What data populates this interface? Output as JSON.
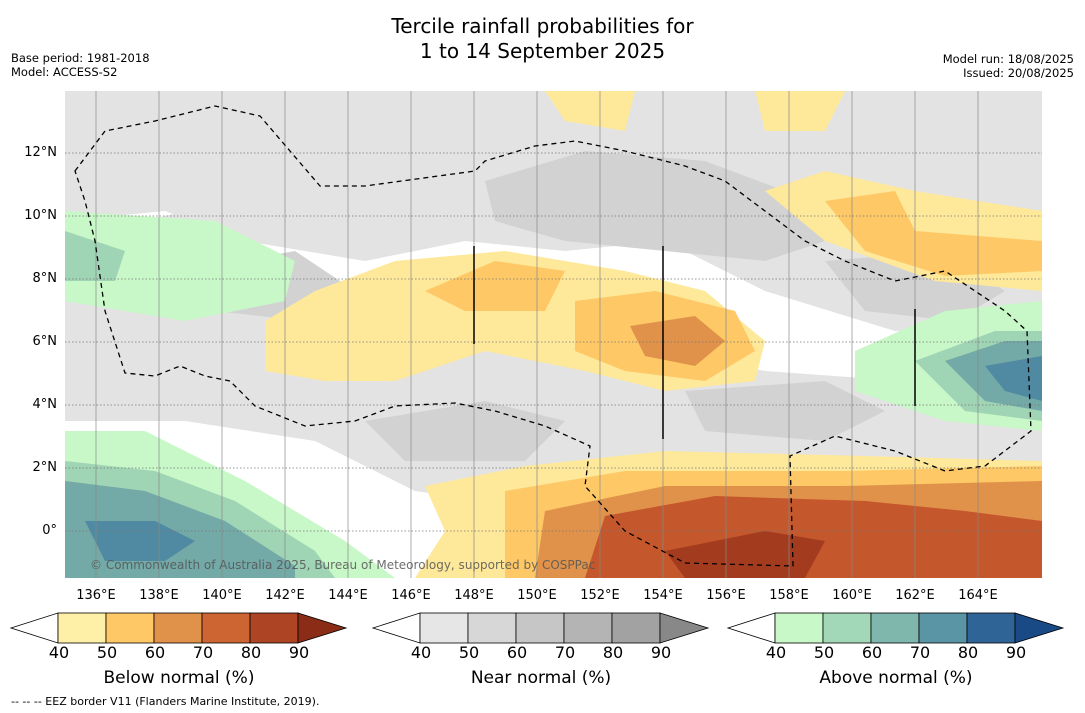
{
  "title_line1": "Tercile rainfall probabilities for",
  "title_line2": "1 to 14 September 2025",
  "base_period": "Base period: 1981-2018",
  "model": "Model: ACCESS-S2",
  "model_run": "Model run: 18/08/2025",
  "issued": "Issued: 20/08/2025",
  "copyright": "© Commonwealth of Australia 2025, Bureau of Meteorology, supported by COSPPac",
  "footer": "--  --  -- EEZ border V11 (Flanders Marine Institute, 2019).",
  "lat_labels": [
    "12°N",
    "10°N",
    "8°N",
    "6°N",
    "4°N",
    "2°N",
    "0°"
  ],
  "lon_labels": [
    "136°E",
    "138°E",
    "140°E",
    "142°E",
    "144°E",
    "146°E",
    "148°E",
    "150°E",
    "152°E",
    "154°E",
    "156°E",
    "158°E",
    "160°E",
    "162°E",
    "164°E"
  ],
  "colorbars": [
    {
      "label": "Below normal (%)",
      "ticks": [
        "40",
        "50",
        "60",
        "70",
        "80",
        "90"
      ],
      "colors": [
        "#ffffff",
        "#fff0a8",
        "#fdc865",
        "#e0924a",
        "#cd6532",
        "#ad4424",
        "#8b2c16"
      ]
    },
    {
      "label": "Near normal (%)",
      "ticks": [
        "40",
        "50",
        "60",
        "70",
        "80",
        "90"
      ],
      "colors": [
        "#ffffff",
        "#e6e6e6",
        "#d7d7d7",
        "#c6c6c6",
        "#b4b4b4",
        "#a2a2a2",
        "#888888"
      ]
    },
    {
      "label": "Above normal (%)",
      "ticks": [
        "40",
        "50",
        "60",
        "70",
        "80",
        "90"
      ],
      "colors": [
        "#ffffff",
        "#c8f7c8",
        "#a2d7b7",
        "#80b7ad",
        "#5a95a5",
        "#2f6596",
        "#1a4a85"
      ]
    }
  ],
  "map_colors": {
    "near50": "#e3e3e3",
    "near60": "#d2d2d2",
    "below50": "#fee89a",
    "below60": "#fdc865",
    "below70": "#e0924a",
    "below80": "#c4572b",
    "below90": "#a33c1e",
    "above50": "#c8f7c8",
    "above60": "#9fd4b5",
    "above70": "#73a9a7",
    "above80": "#4f8aa2",
    "above90": "#326a94"
  }
}
